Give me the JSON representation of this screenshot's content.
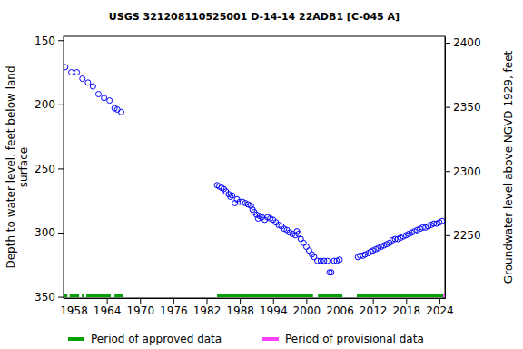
{
  "chart_data": {
    "type": "scatter",
    "title": "USGS 321208110525001 D-14-14 22ADB1 [C-045 A]",
    "y_label": [
      "Depth to water level, feet below land",
      "surface"
    ],
    "y2_label": "Groundwater level above NGVD 1929, feet",
    "xlim": [
      1956.2,
      2025.0
    ],
    "xticks": [
      1958,
      1964,
      1970,
      1976,
      1982,
      1988,
      1994,
      2000,
      2006,
      2012,
      2018,
      2024
    ],
    "ylim": [
      147,
      351
    ],
    "yticks": [
      150,
      200,
      250,
      300,
      350
    ],
    "y2lim": [
      2405,
      2201
    ],
    "y2ticks": [
      2250,
      2300,
      2350,
      2400
    ],
    "x": [
      1956.5,
      1957.6,
      1958.6,
      1959.6,
      1960.6,
      1961.5,
      1962.5,
      1963.5,
      1964.5,
      1965.4,
      1965.9,
      1966.6,
      1983.9,
      1984.3,
      1984.7,
      1985.1,
      1985.5,
      1986.0,
      1986.3,
      1986.6,
      1987.1,
      1987.5,
      1988.0,
      1988.5,
      1989.0,
      1989.5,
      1990.0,
      1990.3,
      1990.6,
      1991.0,
      1991.3,
      1991.6,
      1992.0,
      1992.5,
      1993.0,
      1993.5,
      1994.0,
      1994.5,
      1995.0,
      1995.5,
      1996.0,
      1996.5,
      1997.0,
      1997.5,
      1998.0,
      1998.3,
      1998.6,
      1999.0,
      1999.5,
      2000.0,
      2000.5,
      2001.0,
      2001.4,
      2002.0,
      2002.6,
      2003.2,
      2003.8,
      2004.2,
      2004.5,
      2005.0,
      2005.5,
      2006.0,
      2009.3,
      2009.7,
      2010.2,
      2010.6,
      2011.2,
      2011.6,
      2012.0,
      2012.5,
      2013.0,
      2013.5,
      2014.0,
      2014.5,
      2015.0,
      2015.5,
      2016.0,
      2016.5,
      2017.0,
      2017.5,
      2018.0,
      2018.5,
      2019.0,
      2019.5,
      2020.0,
      2020.5,
      2021.0,
      2021.5,
      2022.0,
      2022.5,
      2023.0,
      2023.5,
      2024.0,
      2024.5
    ],
    "series": [
      {
        "color": "#0000ff",
        "marker": "circle-open",
        "values": [
          171,
          175,
          175,
          180,
          183,
          186,
          192,
          195,
          197,
          203,
          204,
          206,
          263,
          264,
          265,
          266,
          268,
          270,
          272,
          271,
          277,
          274,
          276,
          276,
          277,
          278,
          279,
          282,
          284,
          286,
          289,
          287,
          288,
          290,
          288,
          289,
          290,
          292,
          294,
          295,
          297,
          298,
          300,
          301,
          302,
          299,
          301,
          305,
          308,
          311,
          314,
          317,
          319,
          322,
          322,
          322,
          322,
          331,
          331,
          322,
          322,
          321,
          319,
          318,
          318,
          317,
          316,
          315,
          314,
          313,
          312,
          311,
          310,
          309,
          308,
          306,
          305,
          305,
          304,
          303,
          302,
          301,
          300,
          299,
          298,
          297,
          296,
          296,
          295,
          294,
          293,
          293,
          292,
          291
        ]
      }
    ],
    "periods": [
      {
        "name": "Period of approved data",
        "color": "#00a000",
        "ranges": [
          [
            1956.2,
            1956.9
          ],
          [
            1957.3,
            1959.0
          ],
          [
            1959.5,
            1959.8
          ],
          [
            1960.3,
            1964.7
          ],
          [
            1965.4,
            1967.0
          ],
          [
            1983.9,
            2001.2
          ],
          [
            2002.1,
            2006.5
          ],
          [
            2009.1,
            2024.7
          ]
        ]
      },
      {
        "name": "Period of provisional data",
        "color": "#ff40ff",
        "ranges": [
          [
            2024.7,
            2025.0
          ]
        ]
      }
    ]
  }
}
